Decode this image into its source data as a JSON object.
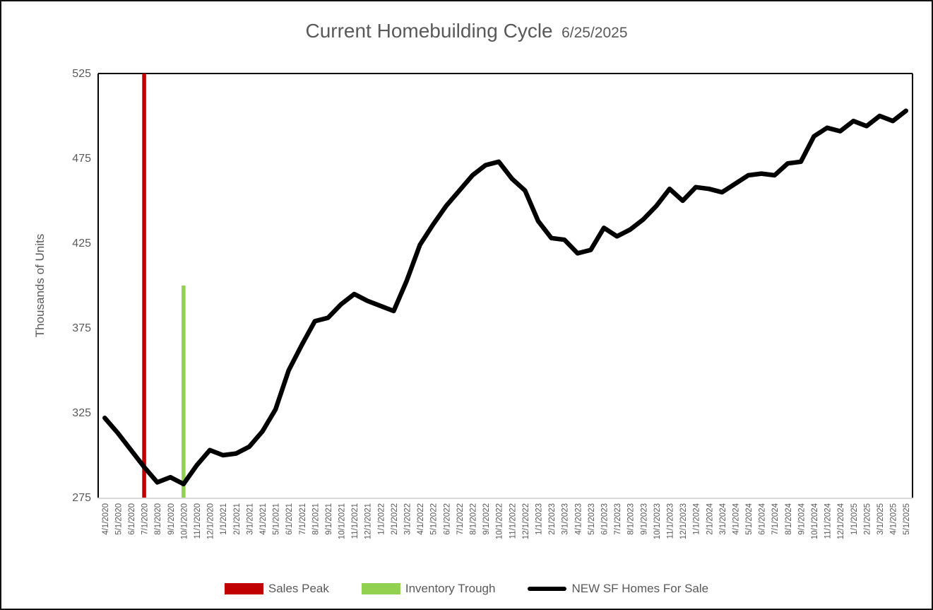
{
  "title": {
    "main": "Current Homebuilding Cycle",
    "date": "6/25/2025"
  },
  "y_axis": {
    "title": "Thousands of Units",
    "ticks": [
      525,
      475,
      425,
      375,
      325,
      275
    ]
  },
  "legend": [
    {
      "label": "Sales Peak",
      "color": "#C00000",
      "marker": "bar"
    },
    {
      "label": "Inventory Trough",
      "color": "#92D050",
      "marker": "bar"
    },
    {
      "label": "NEW SF Homes For Sale",
      "color": "#000000",
      "marker": "line"
    }
  ],
  "chart_data": {
    "type": "line",
    "title": "Current Homebuilding Cycle 6/25/2025",
    "xlabel": "",
    "ylabel": "Thousands of Units",
    "ylim": [
      275,
      525
    ],
    "grid": false,
    "legend_position": "bottom",
    "x": [
      "4/1/2020",
      "5/1/2020",
      "6/1/2020",
      "7/1/2020",
      "8/1/2020",
      "9/1/2020",
      "10/1/2020",
      "11/1/2020",
      "12/1/2020",
      "1/1/2021",
      "2/1/2021",
      "3/1/2021",
      "4/1/2021",
      "5/1/2021",
      "6/1/2021",
      "7/1/2021",
      "8/1/2021",
      "9/1/2021",
      "10/1/2021",
      "11/1/2021",
      "12/1/2021",
      "1/1/2022",
      "2/1/2022",
      "3/1/2022",
      "4/1/2022",
      "5/1/2022",
      "6/1/2022",
      "7/1/2022",
      "8/1/2022",
      "9/1/2022",
      "10/1/2022",
      "11/1/2022",
      "12/1/2022",
      "1/1/2023",
      "2/1/2023",
      "3/1/2023",
      "4/1/2023",
      "5/1/2023",
      "6/1/2023",
      "7/1/2023",
      "8/1/2023",
      "9/1/2023",
      "10/1/2023",
      "11/1/2023",
      "12/1/2023",
      "1/1/2024",
      "2/1/2024",
      "3/1/2024",
      "4/1/2024",
      "5/1/2024",
      "6/1/2024",
      "7/1/2024",
      "8/1/2024",
      "9/1/2024",
      "10/1/2024",
      "11/1/2024",
      "12/1/2024",
      "1/1/2025",
      "2/1/2025",
      "3/1/2025",
      "4/1/2025",
      "5/1/2025"
    ],
    "series": [
      {
        "name": "Sales Peak",
        "type": "vertical-bar-marker",
        "color": "#C00000",
        "points": [
          {
            "x": "7/1/2020",
            "y": 525
          }
        ]
      },
      {
        "name": "Inventory Trough",
        "type": "vertical-bar-marker",
        "color": "#92D050",
        "points": [
          {
            "x": "10/1/2020",
            "y": 400
          }
        ]
      },
      {
        "name": "NEW SF Homes For Sale",
        "type": "line",
        "color": "#000000",
        "values": [
          322,
          313,
          303,
          293,
          284,
          287,
          283,
          294,
          303,
          300,
          301,
          305,
          314,
          327,
          350,
          365,
          379,
          381,
          389,
          395,
          391,
          388,
          385,
          403,
          424,
          436,
          447,
          456,
          465,
          471,
          473,
          463,
          456,
          438,
          428,
          427,
          419,
          421,
          434,
          429,
          433,
          439,
          447,
          457,
          450,
          458,
          457,
          455,
          460,
          465,
          466,
          465,
          472,
          473,
          488,
          493,
          491,
          497,
          494,
          500,
          497,
          503
        ]
      }
    ]
  }
}
